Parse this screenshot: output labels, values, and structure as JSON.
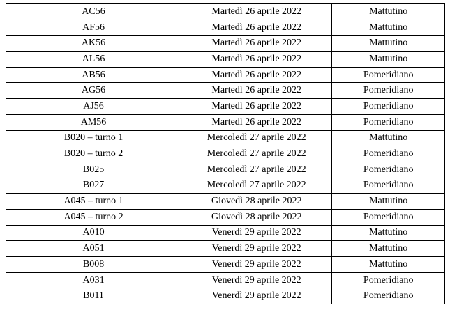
{
  "table": {
    "rows": [
      [
        "AC56",
        "Martedì 26 aprile 2022",
        "Mattutino"
      ],
      [
        "AF56",
        "Martedì 26 aprile 2022",
        "Mattutino"
      ],
      [
        "AK56",
        "Martedì 26 aprile 2022",
        "Mattutino"
      ],
      [
        "AL56",
        "Martedì 26 aprile 2022",
        "Mattutino"
      ],
      [
        "AB56",
        "Martedì 26 aprile 2022",
        "Pomeridiano"
      ],
      [
        "AG56",
        "Martedì 26 aprile 2022",
        "Pomeridiano"
      ],
      [
        "AJ56",
        "Martedì 26 aprile 2022",
        "Pomeridiano"
      ],
      [
        "AM56",
        "Martedì 26 aprile 2022",
        "Pomeridiano"
      ],
      [
        "B020 – turno 1",
        "Mercoledì 27 aprile 2022",
        "Mattutino"
      ],
      [
        "B020 – turno 2",
        "Mercoledì 27 aprile 2022",
        "Pomeridiano"
      ],
      [
        "B025",
        "Mercoledì 27 aprile 2022",
        "Pomeridiano"
      ],
      [
        "B027",
        "Mercoledì 27 aprile 2022",
        "Pomeridiano"
      ],
      [
        "A045 – turno 1",
        "Giovedì 28 aprile 2022",
        "Mattutino"
      ],
      [
        "A045 – turno 2",
        "Giovedì 28 aprile 2022",
        "Pomeridiano"
      ],
      [
        "A010",
        "Venerdì 29 aprile 2022",
        "Mattutino"
      ],
      [
        "A051",
        "Venerdì 29 aprile 2022",
        "Mattutino"
      ],
      [
        "B008",
        "Venerdì 29 aprile 2022",
        "Mattutino"
      ],
      [
        "A031",
        "Venerdì 29 aprile 2022",
        "Pomeridiano"
      ],
      [
        "B011",
        "Venerdì 29 aprile 2022",
        "Pomeridiano"
      ]
    ]
  }
}
